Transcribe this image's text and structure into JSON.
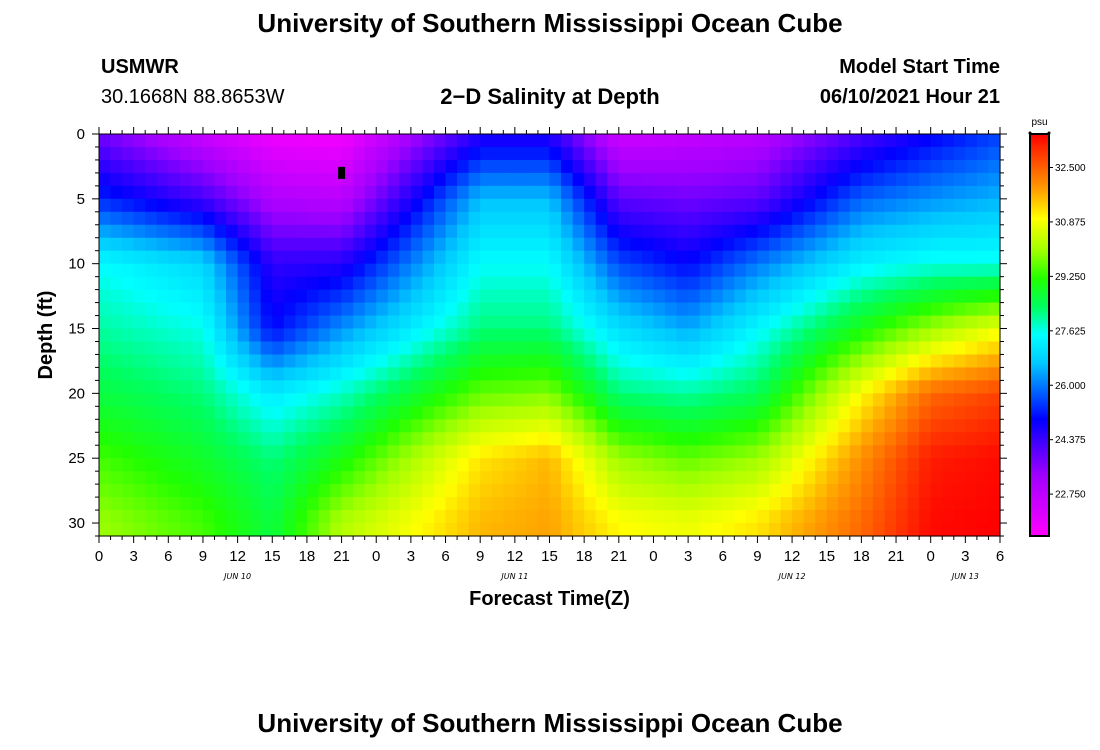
{
  "header": {
    "title": "University of Southern Mississippi Ocean Cube",
    "station": "USMWR",
    "coords": "30.1668N  88.8653W",
    "plot_title": "2−D Salinity at Depth",
    "model_label": "Model Start Time",
    "model_time": "06/10/2021 Hour 21",
    "footer_title": "University of Southern Mississippi Ocean Cube"
  },
  "chart_data": {
    "type": "heatmap",
    "xlabel": "Forecast Time(Z)",
    "ylabel": "Depth (ft)",
    "x_tick_labels": [
      "0",
      "3",
      "6",
      "9",
      "12",
      "15",
      "18",
      "21",
      "0",
      "3",
      "6",
      "9",
      "12",
      "15",
      "18",
      "21",
      "0",
      "3",
      "6",
      "9",
      "12",
      "15",
      "18",
      "21",
      "0",
      "3",
      "6"
    ],
    "day_labels": [
      {
        "label": "JUN 10",
        "tick_index": 4
      },
      {
        "label": "JUN 11",
        "tick_index": 12
      },
      {
        "label": "JUN 12",
        "tick_index": 20
      },
      {
        "label": "JUN 13",
        "tick_index": 25
      }
    ],
    "y_ticks": [
      0,
      5,
      10,
      15,
      20,
      25,
      30
    ],
    "ylim": [
      0,
      31
    ],
    "xlim_hours": [
      0,
      78
    ],
    "colorbar": {
      "unit": "psu",
      "tick_labels": [
        "32.500",
        "30.875",
        "29.250",
        "27.625",
        "26.000",
        "24.375",
        "22.750"
      ],
      "range": [
        21.5,
        33.5
      ]
    },
    "marker": {
      "hour": 21,
      "depth_ft": 3
    },
    "profiles": {
      "description": "salinity (psu) at selected depths (ft) for selected forecast hours",
      "depths": [
        0,
        5,
        10,
        15,
        20,
        25,
        30
      ],
      "hours": [
        0,
        9,
        15,
        21,
        33,
        39,
        45,
        51,
        57,
        66,
        72,
        78
      ],
      "values": [
        [
          23.8,
          22.5,
          21.8,
          21.7,
          24.6,
          24.6,
          22.4,
          22.6,
          22.8,
          24.2,
          24.9,
          25.5
        ],
        [
          25.3,
          24.3,
          23.0,
          22.8,
          26.6,
          26.6,
          24.0,
          23.8,
          24.0,
          25.8,
          26.2,
          26.5
        ],
        [
          27.5,
          26.9,
          24.5,
          24.6,
          27.5,
          27.5,
          25.6,
          25.0,
          26.0,
          27.3,
          27.6,
          27.6
        ],
        [
          28.0,
          27.6,
          25.0,
          26.2,
          28.2,
          28.2,
          27.0,
          26.4,
          27.4,
          29.0,
          30.0,
          30.8
        ],
        [
          28.6,
          28.2,
          27.2,
          27.8,
          29.6,
          29.8,
          28.2,
          28.0,
          28.4,
          31.0,
          32.4,
          32.8
        ],
        [
          29.4,
          28.8,
          28.2,
          29.0,
          31.2,
          31.6,
          30.0,
          29.6,
          30.0,
          32.0,
          33.2,
          33.4
        ],
        [
          30.0,
          29.4,
          28.6,
          30.2,
          31.6,
          31.8,
          31.0,
          30.8,
          31.2,
          32.4,
          33.4,
          33.5
        ]
      ]
    }
  }
}
